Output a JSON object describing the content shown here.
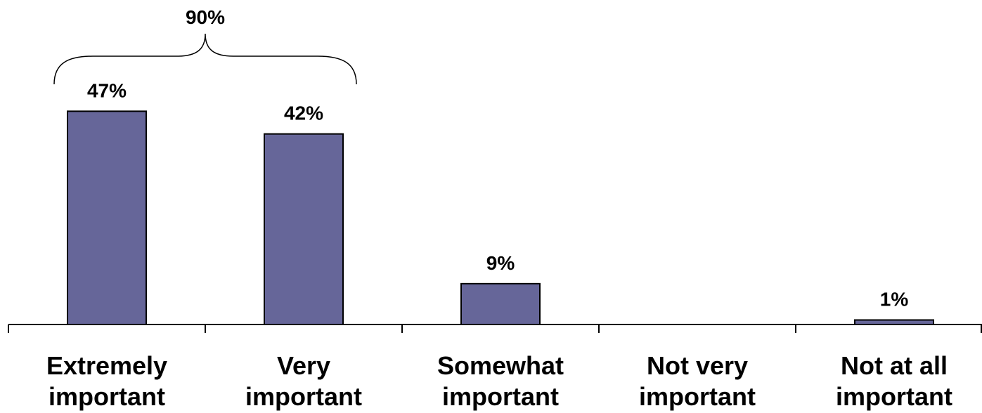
{
  "chart_data": {
    "type": "bar",
    "categories": [
      [
        "Extremely",
        "important"
      ],
      [
        "Very",
        "important"
      ],
      [
        "Somewhat",
        "important"
      ],
      [
        "Not very",
        "important"
      ],
      [
        "Not at all",
        "important"
      ]
    ],
    "values": [
      47,
      42,
      9,
      0,
      1
    ],
    "data_labels": [
      "47%",
      "42%",
      "9%",
      "",
      "1%"
    ],
    "ylim": [
      0,
      50
    ],
    "grid": false,
    "bar_color": "#666699",
    "annotation": {
      "text": "90%",
      "spans_categories": [
        0,
        1
      ]
    }
  }
}
